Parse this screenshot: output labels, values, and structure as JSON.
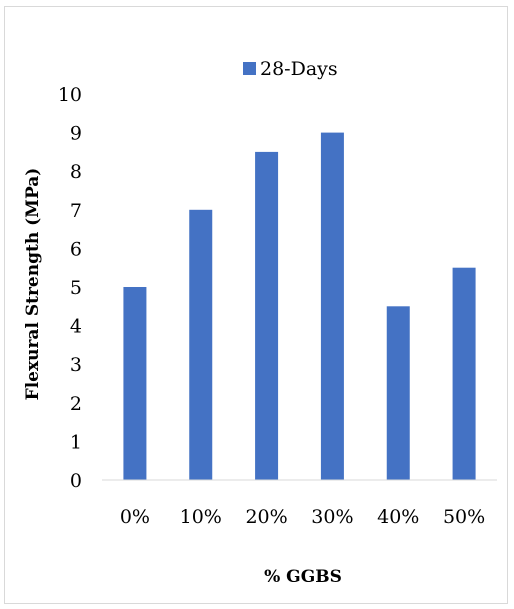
{
  "chart_data": {
    "type": "bar",
    "categories": [
      "0%",
      "10%",
      "20%",
      "30%",
      "40%",
      "50%"
    ],
    "series": [
      {
        "name": "28-Days",
        "values": [
          5,
          7,
          8.5,
          9,
          4.5,
          5.5
        ],
        "color": "#4472C4"
      }
    ],
    "title": "",
    "xlabel": "% GGBS",
    "ylabel": "Flexural Strength (MPa)",
    "ylim": [
      0,
      10
    ],
    "yticks": [
      0,
      1,
      2,
      3,
      4,
      5,
      6,
      7,
      8,
      9,
      10
    ],
    "grid": false,
    "legend_position": "top-center"
  }
}
